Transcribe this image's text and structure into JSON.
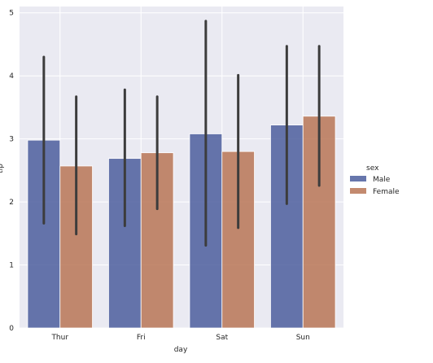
{
  "chart_data": {
    "type": "bar",
    "xlabel": "day",
    "ylabel": "tip",
    "categories": [
      "Thur",
      "Fri",
      "Sat",
      "Sun"
    ],
    "ylim": [
      0,
      5.1
    ],
    "yticks": [
      0,
      1,
      2,
      3,
      4,
      5
    ],
    "grid": true,
    "legend": {
      "title": "sex",
      "placement": "right"
    },
    "series": [
      {
        "name": "Male",
        "color": "#4c5e9e",
        "values": [
          2.98,
          2.69,
          3.08,
          3.22
        ],
        "ci_low": [
          1.66,
          1.62,
          1.31,
          1.97
        ],
        "ci_high": [
          4.3,
          3.78,
          4.87,
          4.47
        ]
      },
      {
        "name": "Female",
        "color": "#b87556",
        "values": [
          2.57,
          2.78,
          2.8,
          3.36
        ],
        "ci_low": [
          1.49,
          1.89,
          1.59,
          2.26
        ],
        "ci_high": [
          3.67,
          3.67,
          4.01,
          4.47
        ]
      }
    ],
    "errorbar_color": "#3c3c3c",
    "background_color": "#eaeaf2"
  }
}
